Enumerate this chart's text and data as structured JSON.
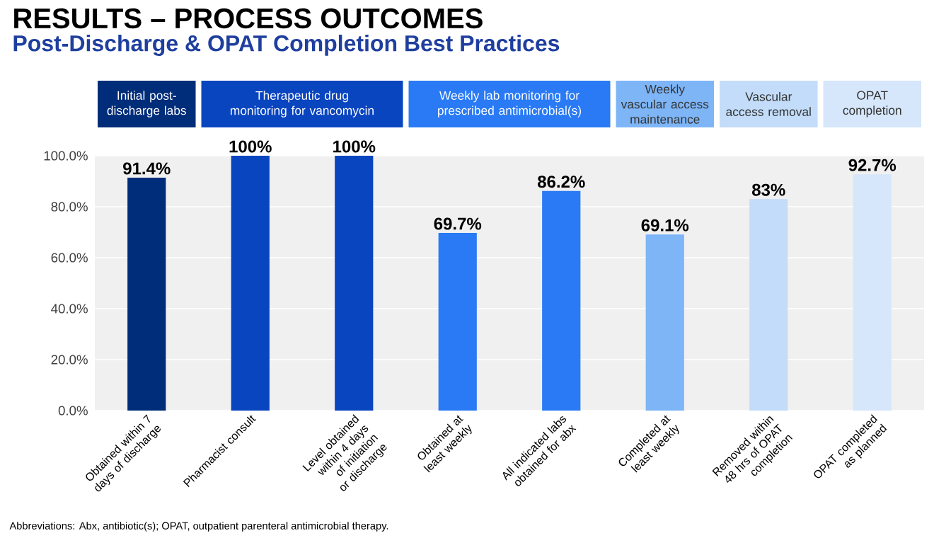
{
  "chart_data": {
    "type": "bar",
    "title": "RESULTS – PROCESS OUTCOMES",
    "subtitle": "Post-Discharge & OPAT Completion Best Practices",
    "categories": [
      "Obtained within 7 days of discharge",
      "Pharmacist consult",
      "Level obtained within 4 days of initiation or discharge",
      "Obtained at least weekly",
      "All indicated labs obtained for abx",
      "Completed at least weekly",
      "Removed within 48 hrs of OPAT completion",
      "OPAT completed as planned"
    ],
    "values": [
      91.4,
      100,
      100,
      69.7,
      86.2,
      69.1,
      83,
      92.7
    ],
    "value_labels": [
      "91.4%",
      "100%",
      "100%",
      "69.7%",
      "86.2%",
      "69.1%",
      "83%",
      "92.7%"
    ],
    "colors": [
      "#002d7a",
      "#0a45c0",
      "#0a45c0",
      "#2a7af5",
      "#2a7af5",
      "#7db5f7",
      "#c2dcf9",
      "#d6e6fb"
    ],
    "ylim": [
      0,
      100
    ],
    "yticks": [
      {
        "value": 0,
        "label": "0.0%"
      },
      {
        "value": 20,
        "label": "20.0%"
      },
      {
        "value": 40,
        "label": "40.0%"
      },
      {
        "value": 60,
        "label": "60.0%"
      },
      {
        "value": 80,
        "label": "80.0%"
      },
      {
        "value": 100,
        "label": "100.0%"
      }
    ],
    "grid": "y",
    "annotations": [
      "Initial post-discharge labs",
      "Therapeutic drug monitoring for vancomycin",
      "Weekly lab monitoring for prescribed antimicrobial(s)",
      "Weekly vascular access maintenance",
      "Vascular access removal",
      "OPAT completion",
      "Abbreviations: Abx, antibiotic(s); OPAT, outpatient parenteral antimicrobial therapy."
    ]
  }
}
